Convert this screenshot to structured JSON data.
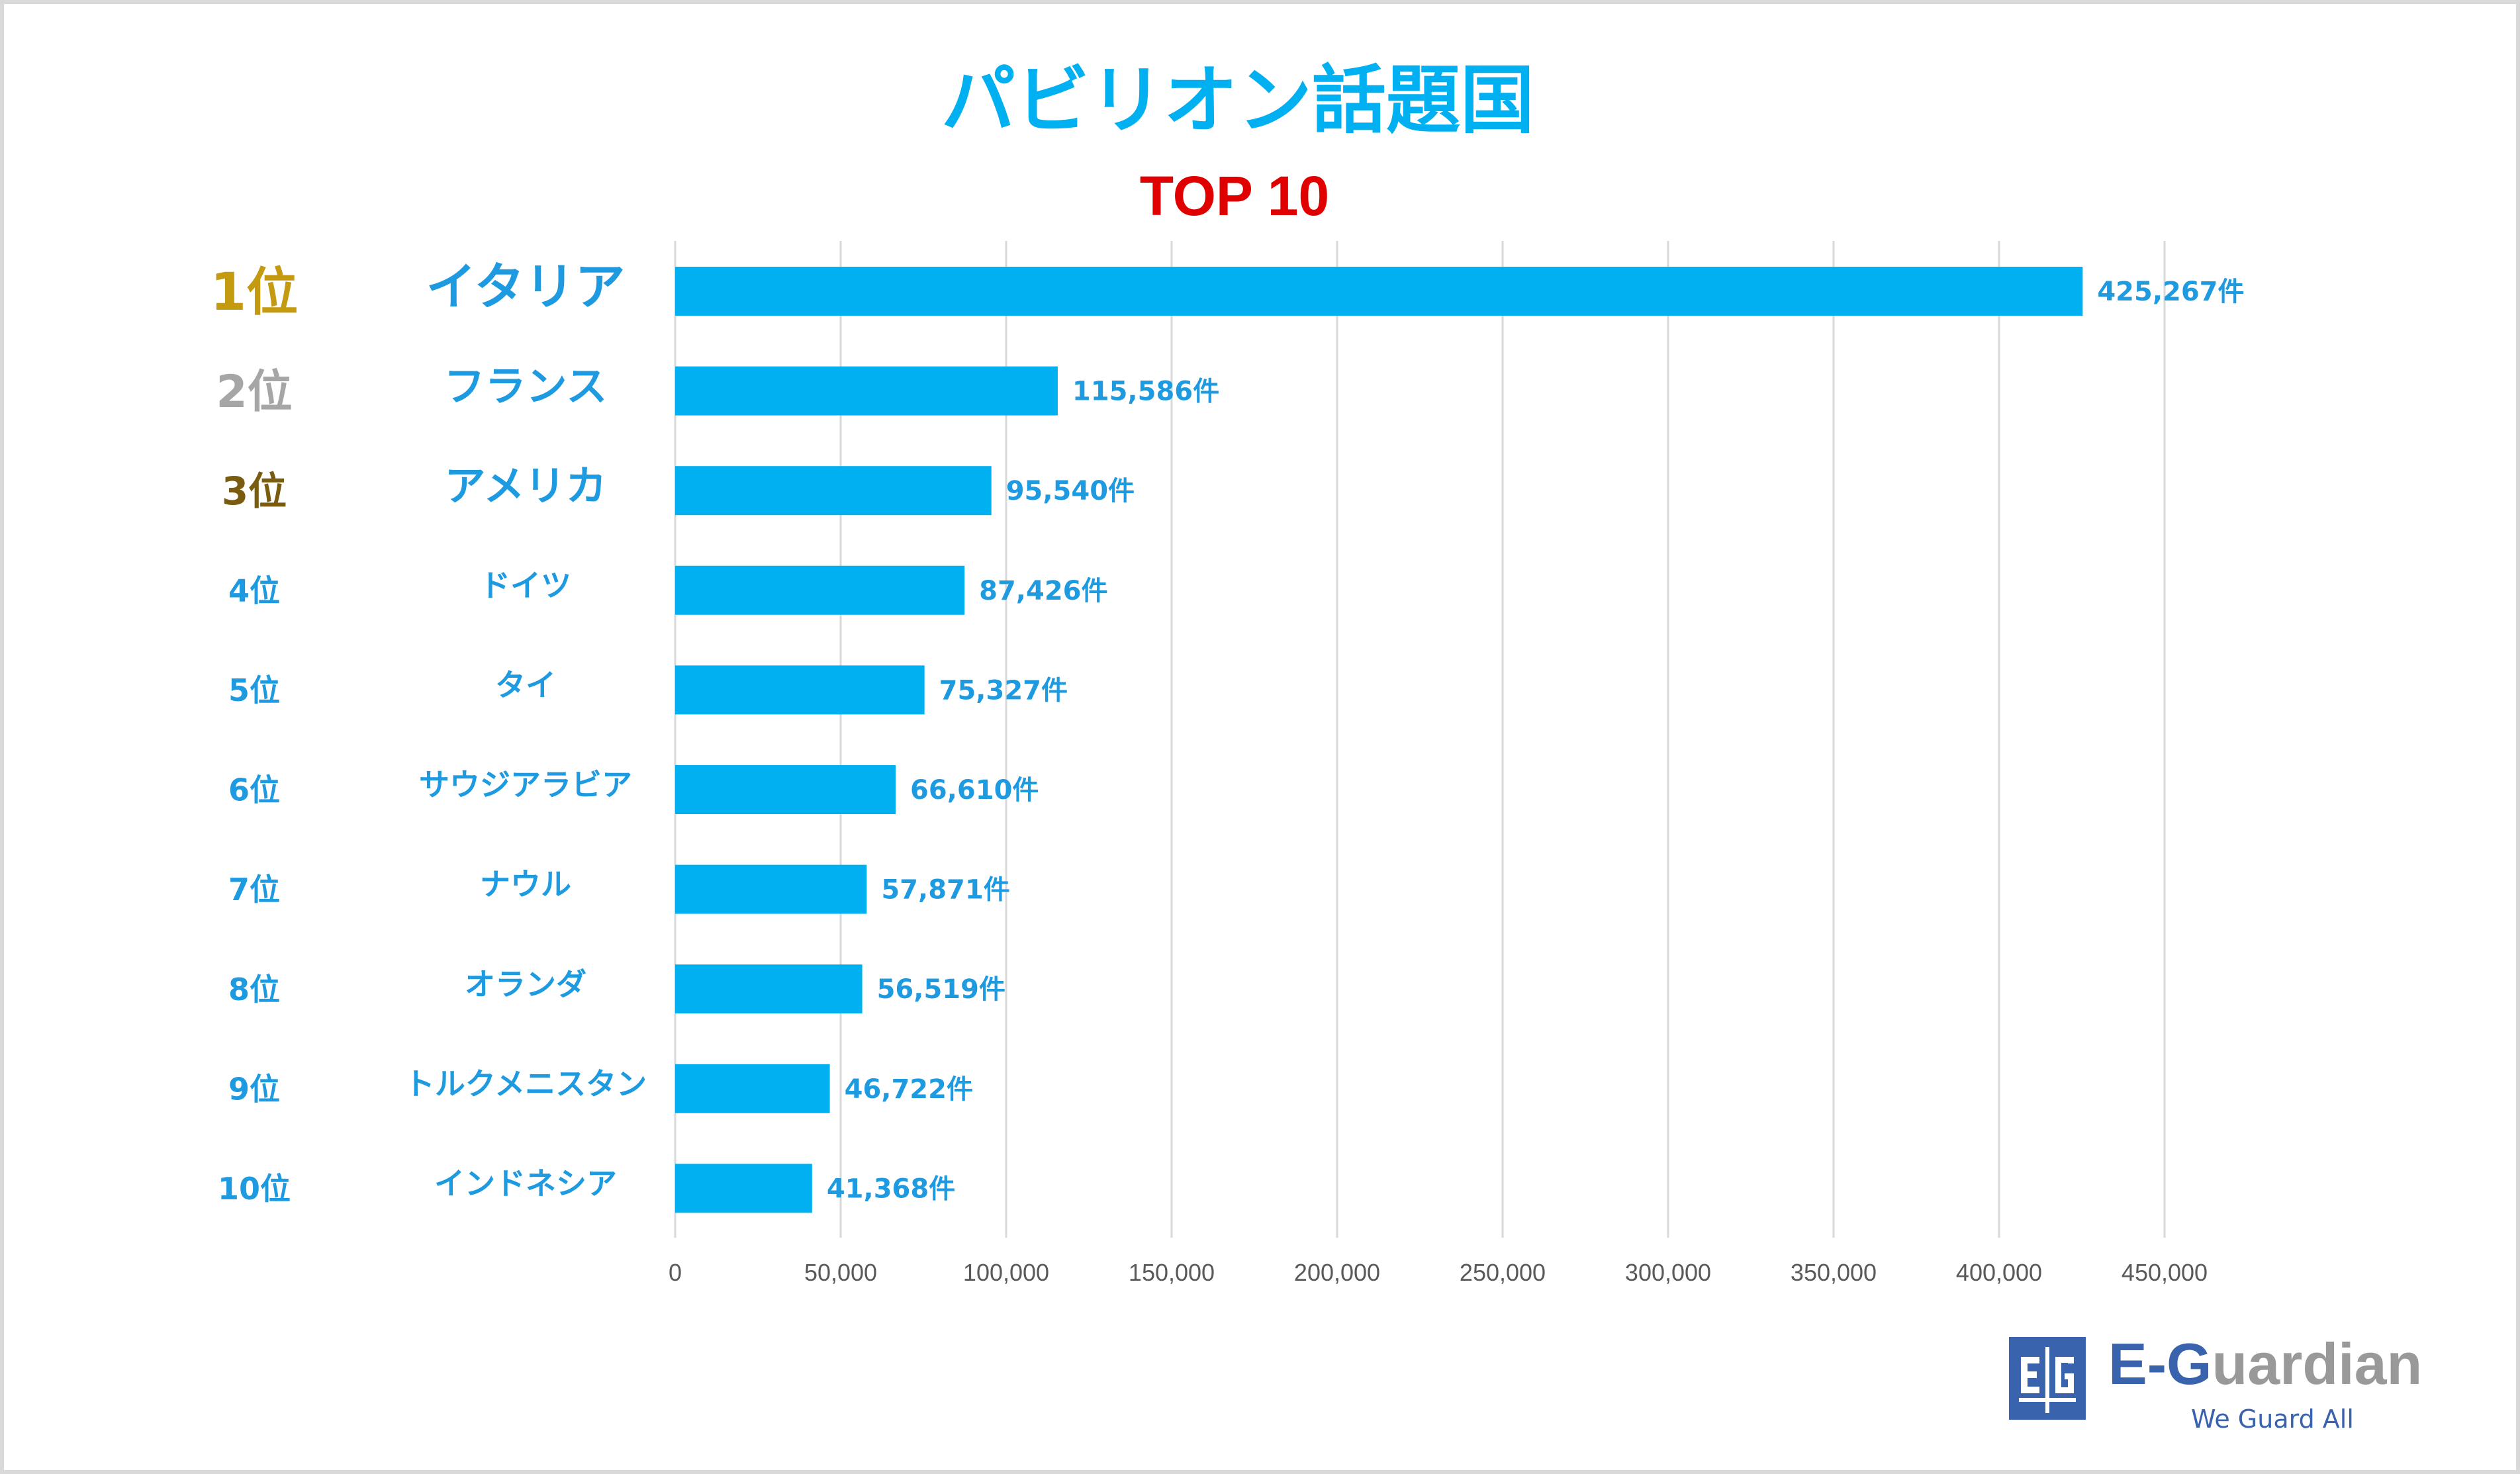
{
  "chart_data": {
    "type": "bar",
    "orientation": "horizontal",
    "title": "パビリオン話題国",
    "subtitle": "TOP 10",
    "ranks": [
      "1位",
      "2位",
      "3位",
      "4位",
      "5位",
      "6位",
      "7位",
      "8位",
      "9位",
      "10位"
    ],
    "categories": [
      "イタリア",
      "フランス",
      "アメリカ",
      "ドイツ",
      "タイ",
      "サウジアラビア",
      "ナウル",
      "オランダ",
      "トルクメニスタン",
      "インドネシア"
    ],
    "values": [
      425267,
      115586,
      95540,
      87426,
      75327,
      66610,
      57871,
      56519,
      46722,
      41368
    ],
    "data_labels": [
      "425,267件",
      "115,586件",
      "95,540件",
      "87,426件",
      "75,327件",
      "66,610件",
      "57,871件",
      "56,519件",
      "46,722件",
      "41,368件"
    ],
    "xlim": [
      0,
      450000
    ],
    "x_ticks": [
      0,
      50000,
      100000,
      150000,
      200000,
      250000,
      300000,
      350000,
      400000,
      450000
    ],
    "x_tick_labels": [
      "0",
      "50,000",
      "100,000",
      "150,000",
      "200,000",
      "250,000",
      "300,000",
      "350,000",
      "400,000",
      "450,000"
    ],
    "grid": true,
    "legend": "none",
    "colors": {
      "bar": "#00b0f0",
      "title": "#00b0f0",
      "subtitle": "#e00000",
      "label": "#1e9be0",
      "rank1": "#c49a10",
      "rank2": "#a6a6a6",
      "rank3": "#7a5c10",
      "rank_other": "#1e9be0",
      "grid": "#d9d9d9",
      "tick": "#595959"
    }
  },
  "logo": {
    "mark": "E|G",
    "name_e": "E-G",
    "name_rest": "uardian",
    "tagline": "We Guard All"
  }
}
